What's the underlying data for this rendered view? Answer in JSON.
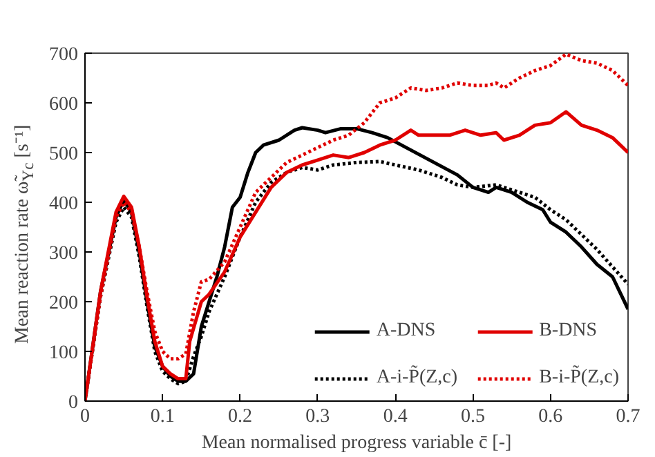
{
  "chart_data": {
    "type": "line",
    "xlabel": "Mean normalised progress variable c̄ [-]",
    "ylabel": "Mean reaction rate ω̃$_{Yc}$ [s⁻¹]",
    "xlim": [
      0,
      0.7
    ],
    "ylim": [
      0,
      700
    ],
    "xticks": [
      0,
      0.1,
      0.2,
      0.3,
      0.4,
      0.5,
      0.6,
      0.7
    ],
    "yticks": [
      0,
      100,
      200,
      300,
      400,
      500,
      600,
      700
    ],
    "grid": false,
    "legend": "bottom right",
    "marker": "none",
    "series": [
      {
        "name": "A-DNS",
        "color": "#000000",
        "line_style": "solid",
        "x": [
          0,
          0.02,
          0.04,
          0.05,
          0.06,
          0.07,
          0.08,
          0.09,
          0.1,
          0.11,
          0.12,
          0.13,
          0.14,
          0.15,
          0.16,
          0.17,
          0.18,
          0.19,
          0.2,
          0.21,
          0.22,
          0.23,
          0.25,
          0.27,
          0.28,
          0.3,
          0.31,
          0.33,
          0.35,
          0.37,
          0.39,
          0.42,
          0.45,
          0.48,
          0.5,
          0.52,
          0.53,
          0.55,
          0.57,
          0.59,
          0.6,
          0.62,
          0.64,
          0.66,
          0.68,
          0.7
        ],
        "values": [
          0,
          220,
          370,
          405,
          380,
          300,
          200,
          110,
          70,
          50,
          40,
          40,
          55,
          150,
          200,
          250,
          310,
          390,
          410,
          460,
          500,
          515,
          525,
          545,
          550,
          545,
          540,
          548,
          548,
          540,
          530,
          505,
          480,
          455,
          430,
          420,
          430,
          420,
          400,
          385,
          360,
          340,
          310,
          275,
          250,
          185
        ]
      },
      {
        "name": "A-i-P̃(Z,c)",
        "color": "#000000",
        "line_style": "dotted",
        "x": [
          0,
          0.02,
          0.04,
          0.05,
          0.06,
          0.07,
          0.08,
          0.09,
          0.1,
          0.11,
          0.12,
          0.13,
          0.14,
          0.15,
          0.16,
          0.18,
          0.2,
          0.22,
          0.24,
          0.26,
          0.28,
          0.3,
          0.32,
          0.35,
          0.38,
          0.4,
          0.43,
          0.46,
          0.48,
          0.5,
          0.53,
          0.55,
          0.58,
          0.6,
          0.62,
          0.64,
          0.66,
          0.68,
          0.7
        ],
        "values": [
          0,
          210,
          360,
          390,
          370,
          290,
          190,
          100,
          60,
          45,
          35,
          40,
          90,
          130,
          180,
          250,
          330,
          400,
          440,
          460,
          470,
          465,
          475,
          480,
          482,
          475,
          465,
          450,
          435,
          430,
          435,
          425,
          410,
          385,
          365,
          335,
          305,
          270,
          235
        ]
      },
      {
        "name": "B-DNS",
        "color": "#e00000",
        "line_style": "solid",
        "x": [
          0,
          0.02,
          0.04,
          0.05,
          0.06,
          0.07,
          0.08,
          0.09,
          0.1,
          0.11,
          0.12,
          0.13,
          0.135,
          0.15,
          0.16,
          0.18,
          0.2,
          0.22,
          0.24,
          0.26,
          0.28,
          0.3,
          0.32,
          0.34,
          0.36,
          0.38,
          0.4,
          0.42,
          0.43,
          0.45,
          0.47,
          0.49,
          0.51,
          0.53,
          0.54,
          0.56,
          0.58,
          0.6,
          0.62,
          0.64,
          0.66,
          0.68,
          0.7
        ],
        "values": [
          0,
          220,
          380,
          412,
          390,
          310,
          210,
          120,
          70,
          55,
          45,
          45,
          120,
          200,
          215,
          260,
          330,
          380,
          430,
          460,
          475,
          485,
          495,
          490,
          500,
          515,
          525,
          545,
          535,
          535,
          535,
          545,
          535,
          540,
          525,
          535,
          555,
          560,
          582,
          555,
          545,
          530,
          500
        ]
      },
      {
        "name": "B-i-P̃(Z,c)",
        "color": "#e00000",
        "line_style": "dotted",
        "x": [
          0,
          0.02,
          0.04,
          0.05,
          0.06,
          0.07,
          0.08,
          0.09,
          0.1,
          0.11,
          0.12,
          0.13,
          0.14,
          0.15,
          0.16,
          0.18,
          0.2,
          0.22,
          0.24,
          0.26,
          0.28,
          0.3,
          0.32,
          0.34,
          0.36,
          0.38,
          0.4,
          0.42,
          0.44,
          0.46,
          0.48,
          0.5,
          0.52,
          0.53,
          0.54,
          0.56,
          0.58,
          0.6,
          0.62,
          0.64,
          0.66,
          0.68,
          0.7
        ],
        "values": [
          0,
          210,
          370,
          400,
          380,
          310,
          220,
          140,
          100,
          85,
          85,
          95,
          180,
          240,
          245,
          280,
          350,
          420,
          450,
          480,
          495,
          510,
          525,
          535,
          560,
          600,
          610,
          630,
          625,
          630,
          640,
          635,
          635,
          640,
          630,
          650,
          665,
          675,
          698,
          685,
          680,
          665,
          635
        ]
      }
    ]
  }
}
